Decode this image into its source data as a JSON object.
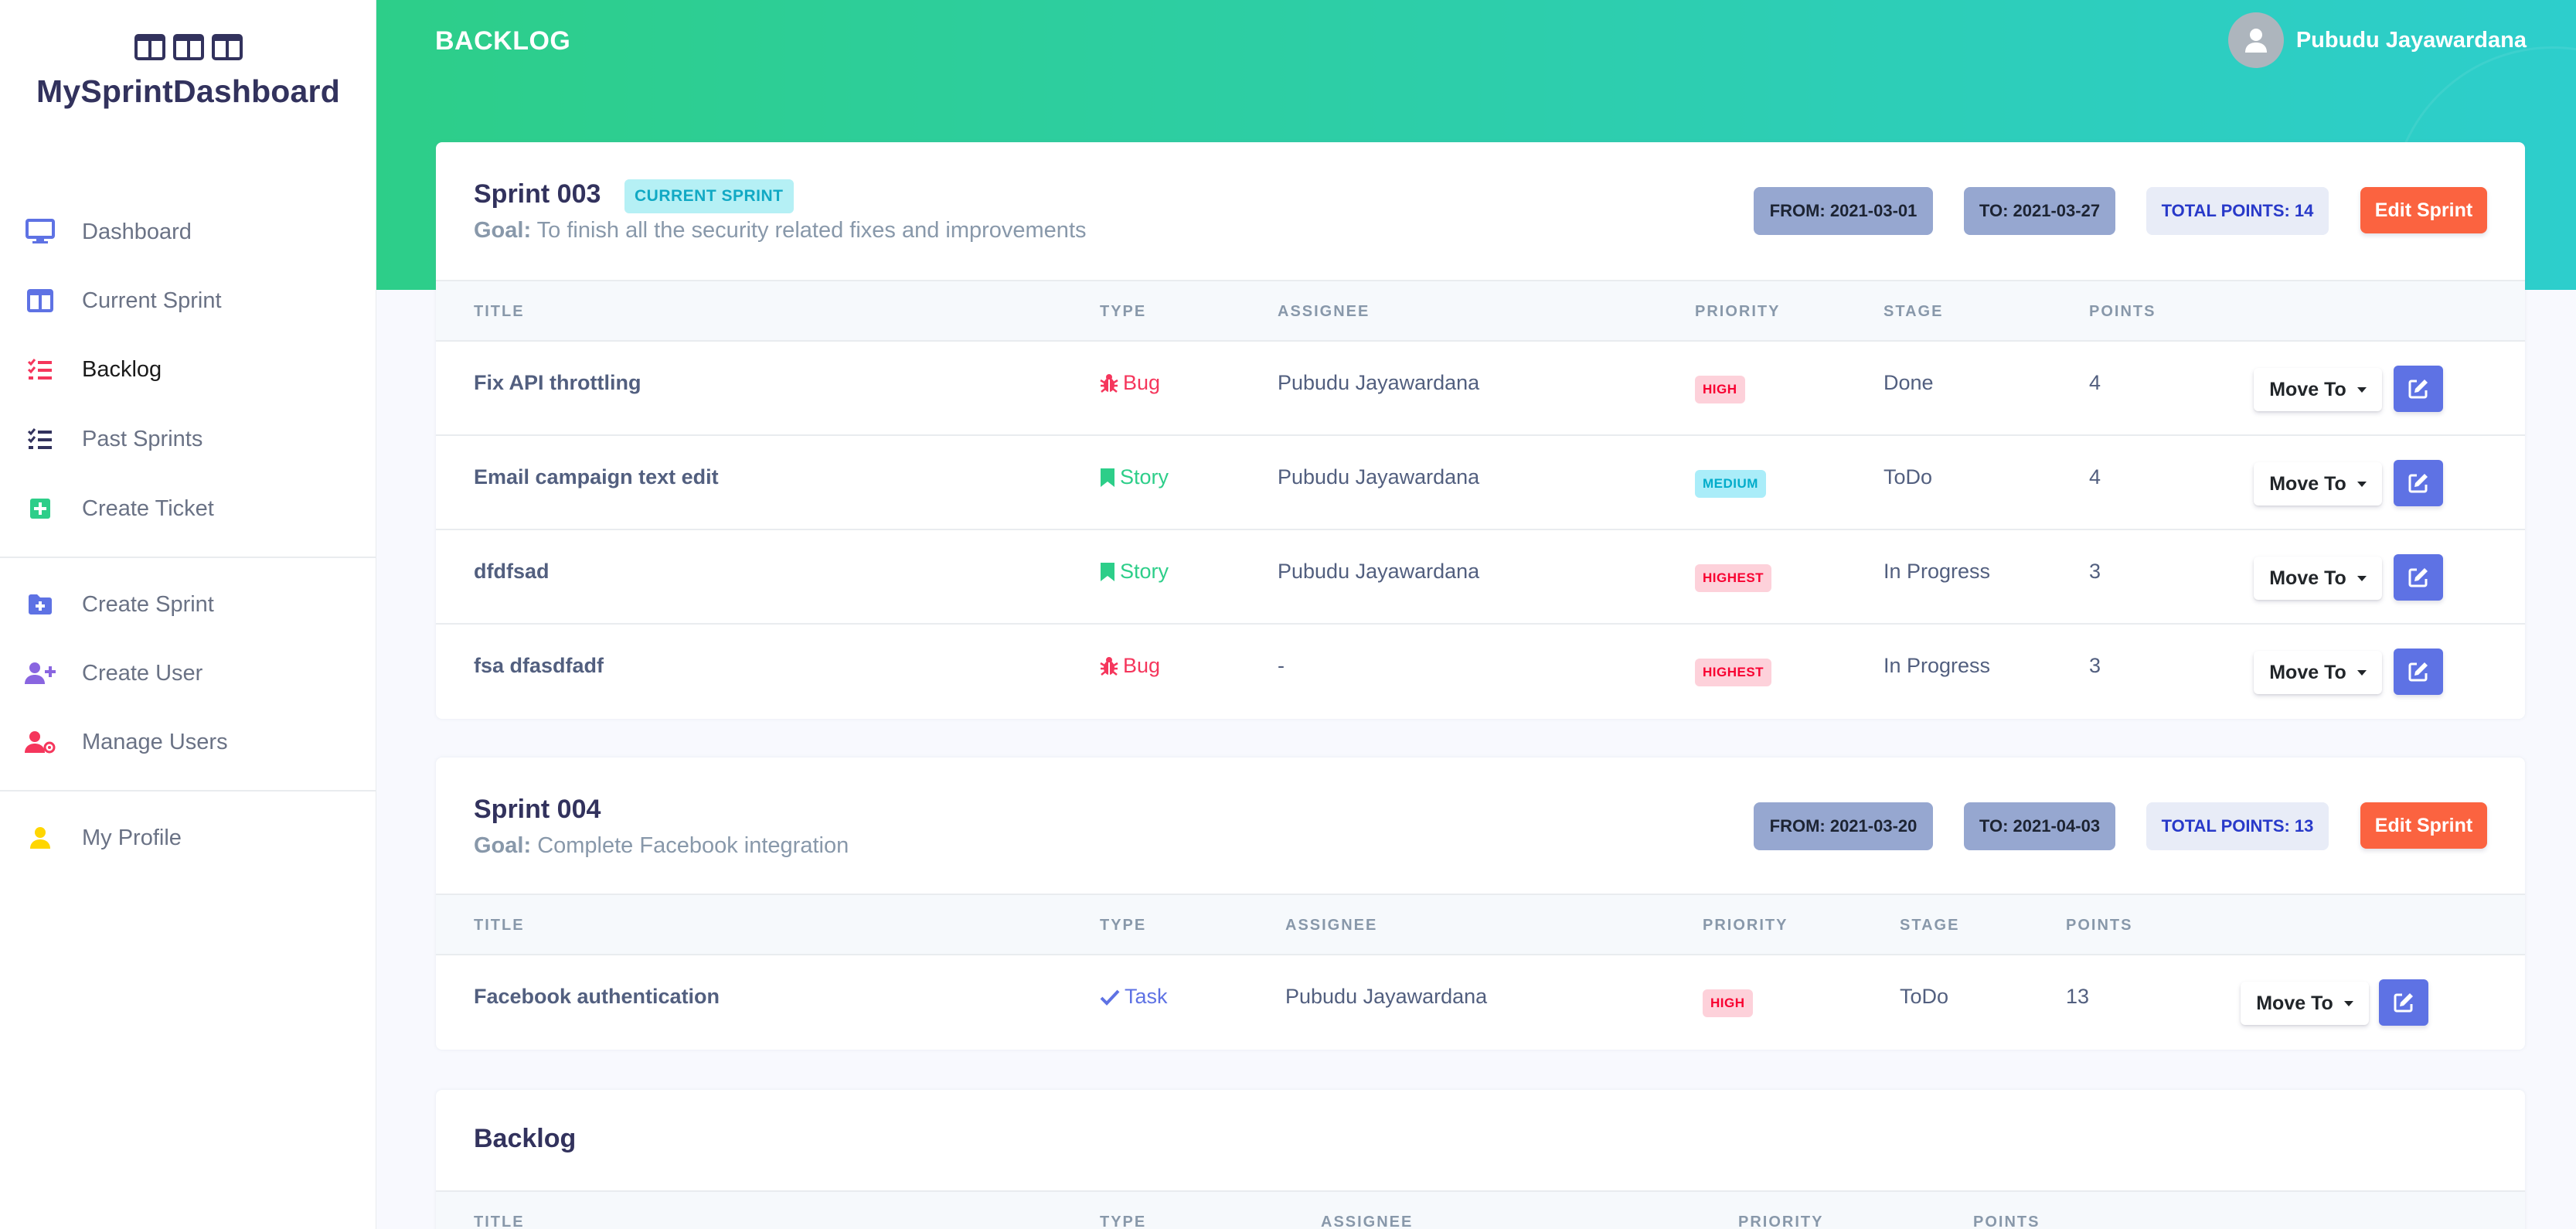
{
  "app": {
    "brand": "MySprintDashboard",
    "page_title": "BACKLOG",
    "user_name": "Pubudu Jayawardana"
  },
  "sidebar": {
    "items": [
      {
        "label": "Dashboard",
        "icon": "monitor-icon",
        "color": "#5e72e4"
      },
      {
        "label": "Current Sprint",
        "icon": "columns-icon",
        "color": "#5e72e4"
      },
      {
        "label": "Backlog",
        "icon": "list-check-icon",
        "color": "#f5365c"
      },
      {
        "label": "Past Sprints",
        "icon": "list-check-icon",
        "color": "#32325d"
      },
      {
        "label": "Create Ticket",
        "icon": "plus-square-icon",
        "color": "#2dce89"
      },
      {
        "label": "Create Sprint",
        "icon": "folder-plus-icon",
        "color": "#5e72e4"
      },
      {
        "label": "Create User",
        "icon": "user-plus-icon",
        "color": "#8965e0"
      },
      {
        "label": "Manage Users",
        "icon": "user-gear-icon",
        "color": "#f5365c"
      },
      {
        "label": "My Profile",
        "icon": "user-icon",
        "color": "#ffd600"
      }
    ]
  },
  "table_headers": {
    "title": "TITLE",
    "type": "TYPE",
    "assignee": "ASSIGNEE",
    "priority": "PRIORITY",
    "stage": "STAGE",
    "points": "POINTS"
  },
  "labels": {
    "goal_prefix": "Goal:",
    "move_to": "Move To",
    "edit_sprint": "Edit Sprint"
  },
  "sprints": [
    {
      "name": "Sprint 003",
      "current_tag": "CURRENT SPRINT",
      "goal": "To finish all the security related fixes and improvements",
      "from": "FROM: 2021-03-01",
      "to": "TO: 2021-03-27",
      "total_points": "TOTAL POINTS: 14",
      "tickets": [
        {
          "title": "Fix API throttling",
          "type": "Bug",
          "assignee": "Pubudu Jayawardana",
          "priority": "HIGH",
          "stage": "Done",
          "points": "4"
        },
        {
          "title": "Email campaign text edit",
          "type": "Story",
          "assignee": "Pubudu Jayawardana",
          "priority": "MEDIUM",
          "stage": "ToDo",
          "points": "4"
        },
        {
          "title": "dfdfsad",
          "type": "Story",
          "assignee": "Pubudu Jayawardana",
          "priority": "HIGHEST",
          "stage": "In Progress",
          "points": "3"
        },
        {
          "title": "fsa dfasdfadf",
          "type": "Bug",
          "assignee": "-",
          "priority": "HIGHEST",
          "stage": "In Progress",
          "points": "3"
        }
      ]
    },
    {
      "name": "Sprint 004",
      "goal": "Complete Facebook integration",
      "from": "FROM: 2021-03-20",
      "to": "TO: 2021-04-03",
      "total_points": "TOTAL POINTS: 13",
      "tickets": [
        {
          "title": "Facebook authentication",
          "type": "Task",
          "assignee": "Pubudu Jayawardana",
          "priority": "HIGH",
          "stage": "ToDo",
          "points": "13"
        }
      ]
    }
  ],
  "backlog": {
    "name": "Backlog"
  },
  "colors": {
    "header_start": "#2dce89",
    "header_end": "#2dcecc",
    "edit_sprint": "#fb6340",
    "edit_row": "#5e72e4"
  }
}
